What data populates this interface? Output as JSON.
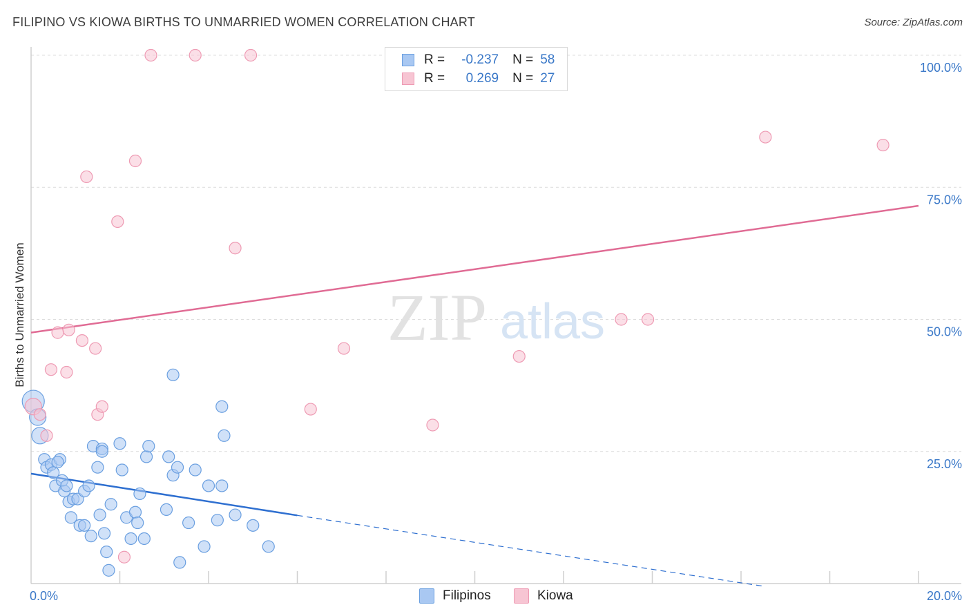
{
  "header": {
    "title": "FILIPINO VS KIOWA BIRTHS TO UNMARRIED WOMEN CORRELATION CHART",
    "source": "Source: ZipAtlas.com"
  },
  "legend": {
    "rows": [
      {
        "r_label": "R =",
        "r_value": "-0.237",
        "n_label": "N =",
        "n_value": "58"
      },
      {
        "r_label": "R =",
        "r_value": "0.269",
        "n_label": "N =",
        "n_value": "27"
      }
    ]
  },
  "watermark": {
    "zip": "ZIP",
    "atlas": "atlas"
  },
  "colors": {
    "filipinos_fill": "#a9c8f2",
    "filipinos_stroke": "#6a9fe0",
    "filipinos_line": "#2e6fd0",
    "kiowa_fill": "#f7c5d3",
    "kiowa_stroke": "#ee9ab3",
    "kiowa_line": "#e06b94"
  },
  "chart_data": {
    "type": "scatter",
    "title": "FILIPINO VS KIOWA BIRTHS TO UNMARRIED WOMEN CORRELATION CHART",
    "xlabel": "",
    "ylabel": "Births to Unmarried Women",
    "xlim": [
      0,
      20
    ],
    "ylim": [
      0,
      100
    ],
    "x_tick_labels": [
      "0.0%",
      "20.0%"
    ],
    "y_tick_labels": [
      "100.0%",
      "75.0%",
      "50.0%",
      "25.0%"
    ],
    "y_ticks": [
      100,
      75,
      50,
      25
    ],
    "legend_position": "top-center",
    "series": [
      {
        "name": "Filipinos",
        "r": -0.237,
        "n": 58,
        "trend": {
          "x0": 0,
          "y0": 20.8,
          "x1": 6.0,
          "y1": 12.9,
          "dashed_to_x": 16.5,
          "dashed_to_y": -0.5
        },
        "points": [
          {
            "x": 0.05,
            "y": 34.5,
            "size": "large"
          },
          {
            "x": 0.15,
            "y": 31.5,
            "size": "medium"
          },
          {
            "x": 0.2,
            "y": 28.0,
            "size": "medium"
          },
          {
            "x": 0.3,
            "y": 23.5
          },
          {
            "x": 0.35,
            "y": 22.0
          },
          {
            "x": 0.45,
            "y": 22.5
          },
          {
            "x": 0.5,
            "y": 21.0
          },
          {
            "x": 0.55,
            "y": 18.5
          },
          {
            "x": 0.65,
            "y": 23.5
          },
          {
            "x": 0.7,
            "y": 19.5
          },
          {
            "x": 0.75,
            "y": 17.5
          },
          {
            "x": 0.8,
            "y": 18.5
          },
          {
            "x": 0.85,
            "y": 15.5
          },
          {
            "x": 0.9,
            "y": 12.5
          },
          {
            "x": 0.95,
            "y": 16.0
          },
          {
            "x": 1.05,
            "y": 16.0
          },
          {
            "x": 1.1,
            "y": 11.0
          },
          {
            "x": 1.2,
            "y": 17.5
          },
          {
            "x": 1.3,
            "y": 18.5
          },
          {
            "x": 1.35,
            "y": 9.0
          },
          {
            "x": 1.4,
            "y": 26.0
          },
          {
            "x": 1.5,
            "y": 22.0
          },
          {
            "x": 1.55,
            "y": 13.0
          },
          {
            "x": 1.6,
            "y": 25.5
          },
          {
            "x": 1.65,
            "y": 9.5
          },
          {
            "x": 1.7,
            "y": 6.0
          },
          {
            "x": 1.75,
            "y": 2.5
          },
          {
            "x": 1.8,
            "y": 15.0
          },
          {
            "x": 2.0,
            "y": 26.5
          },
          {
            "x": 2.05,
            "y": 21.5
          },
          {
            "x": 2.15,
            "y": 12.5
          },
          {
            "x": 2.25,
            "y": 8.5
          },
          {
            "x": 2.35,
            "y": 13.5
          },
          {
            "x": 2.4,
            "y": 11.5
          },
          {
            "x": 2.45,
            "y": 17.0
          },
          {
            "x": 2.55,
            "y": 8.5
          },
          {
            "x": 2.6,
            "y": 24.0
          },
          {
            "x": 2.65,
            "y": 26.0
          },
          {
            "x": 3.05,
            "y": 14.0
          },
          {
            "x": 3.1,
            "y": 24.0
          },
          {
            "x": 3.2,
            "y": 20.5
          },
          {
            "x": 3.2,
            "y": 39.5
          },
          {
            "x": 3.3,
            "y": 22.0
          },
          {
            "x": 3.35,
            "y": 4.0
          },
          {
            "x": 3.55,
            "y": 11.5
          },
          {
            "x": 3.7,
            "y": 21.5
          },
          {
            "x": 3.9,
            "y": 7.0
          },
          {
            "x": 4.0,
            "y": 18.5
          },
          {
            "x": 4.2,
            "y": 12.0
          },
          {
            "x": 4.3,
            "y": 18.5
          },
          {
            "x": 4.3,
            "y": 33.5
          },
          {
            "x": 4.35,
            "y": 28.0
          },
          {
            "x": 4.6,
            "y": 13.0
          },
          {
            "x": 5.0,
            "y": 11.0
          },
          {
            "x": 5.35,
            "y": 7.0
          },
          {
            "x": 1.6,
            "y": 25.0
          },
          {
            "x": 0.6,
            "y": 23.0
          },
          {
            "x": 1.2,
            "y": 11.0
          }
        ]
      },
      {
        "name": "Kiowa",
        "r": 0.269,
        "n": 27,
        "trend": {
          "x0": 0,
          "y0": 47.5,
          "x1": 20,
          "y1": 71.5
        },
        "points": [
          {
            "x": 0.05,
            "y": 33.5,
            "size": "medium"
          },
          {
            "x": 0.2,
            "y": 32.0
          },
          {
            "x": 0.35,
            "y": 28.0
          },
          {
            "x": 0.45,
            "y": 40.5
          },
          {
            "x": 0.6,
            "y": 47.5
          },
          {
            "x": 0.8,
            "y": 40.0
          },
          {
            "x": 0.85,
            "y": 48.0
          },
          {
            "x": 1.15,
            "y": 46.0
          },
          {
            "x": 1.25,
            "y": 77.0
          },
          {
            "x": 1.45,
            "y": 44.5
          },
          {
            "x": 1.5,
            "y": 32.0
          },
          {
            "x": 1.6,
            "y": 33.5
          },
          {
            "x": 1.95,
            "y": 68.5
          },
          {
            "x": 2.1,
            "y": 5.0
          },
          {
            "x": 2.35,
            "y": 80.0
          },
          {
            "x": 2.7,
            "y": 100.0
          },
          {
            "x": 3.7,
            "y": 100.0
          },
          {
            "x": 4.6,
            "y": 63.5
          },
          {
            "x": 4.95,
            "y": 100.0
          },
          {
            "x": 6.3,
            "y": 33.0
          },
          {
            "x": 7.05,
            "y": 44.5
          },
          {
            "x": 9.05,
            "y": 30.0
          },
          {
            "x": 11.0,
            "y": 43.0
          },
          {
            "x": 13.3,
            "y": 50.0
          },
          {
            "x": 13.9,
            "y": 50.0
          },
          {
            "x": 16.55,
            "y": 84.5
          },
          {
            "x": 19.2,
            "y": 83.0
          }
        ]
      }
    ]
  }
}
